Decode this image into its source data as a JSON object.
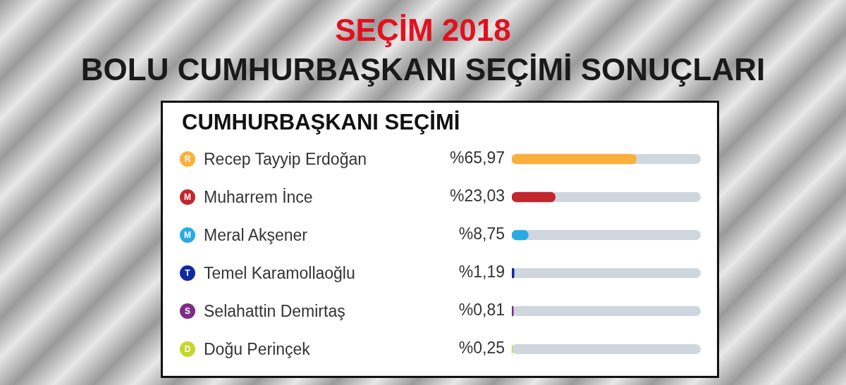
{
  "chart_data": {
    "type": "bar",
    "orientation": "horizontal",
    "title": "SEÇİM 2018",
    "subtitle": "BOLU CUMHURBAŞKANI SEÇİMİ SONUÇLARI",
    "annotations": [
      "CUMHURBAŞKANI SEÇİMİ",
      "R",
      "M",
      "M",
      "T",
      "S",
      "D"
    ],
    "categories": [
      "Recep Tayyip Erdoğan",
      "Muharrem İnce",
      "Meral Akşener",
      "Temel Karamollaoğlu",
      "Selahattin Demirtaş",
      "Doğu Perinçek"
    ],
    "values": [
      65.97,
      23.03,
      8.75,
      1.19,
      0.81,
      0.25
    ],
    "value_labels": [
      "%65,97",
      "%23,03",
      "%8,75",
      "%1,19",
      "%0,81",
      "%0,25"
    ],
    "colors": [
      "#fbb03b",
      "#c1272d",
      "#29abe2",
      "#0f2aa0",
      "#7b2d86",
      "#c5d62d"
    ],
    "xlim": [
      0,
      100
    ],
    "tick_labels": false,
    "legend": false
  }
}
